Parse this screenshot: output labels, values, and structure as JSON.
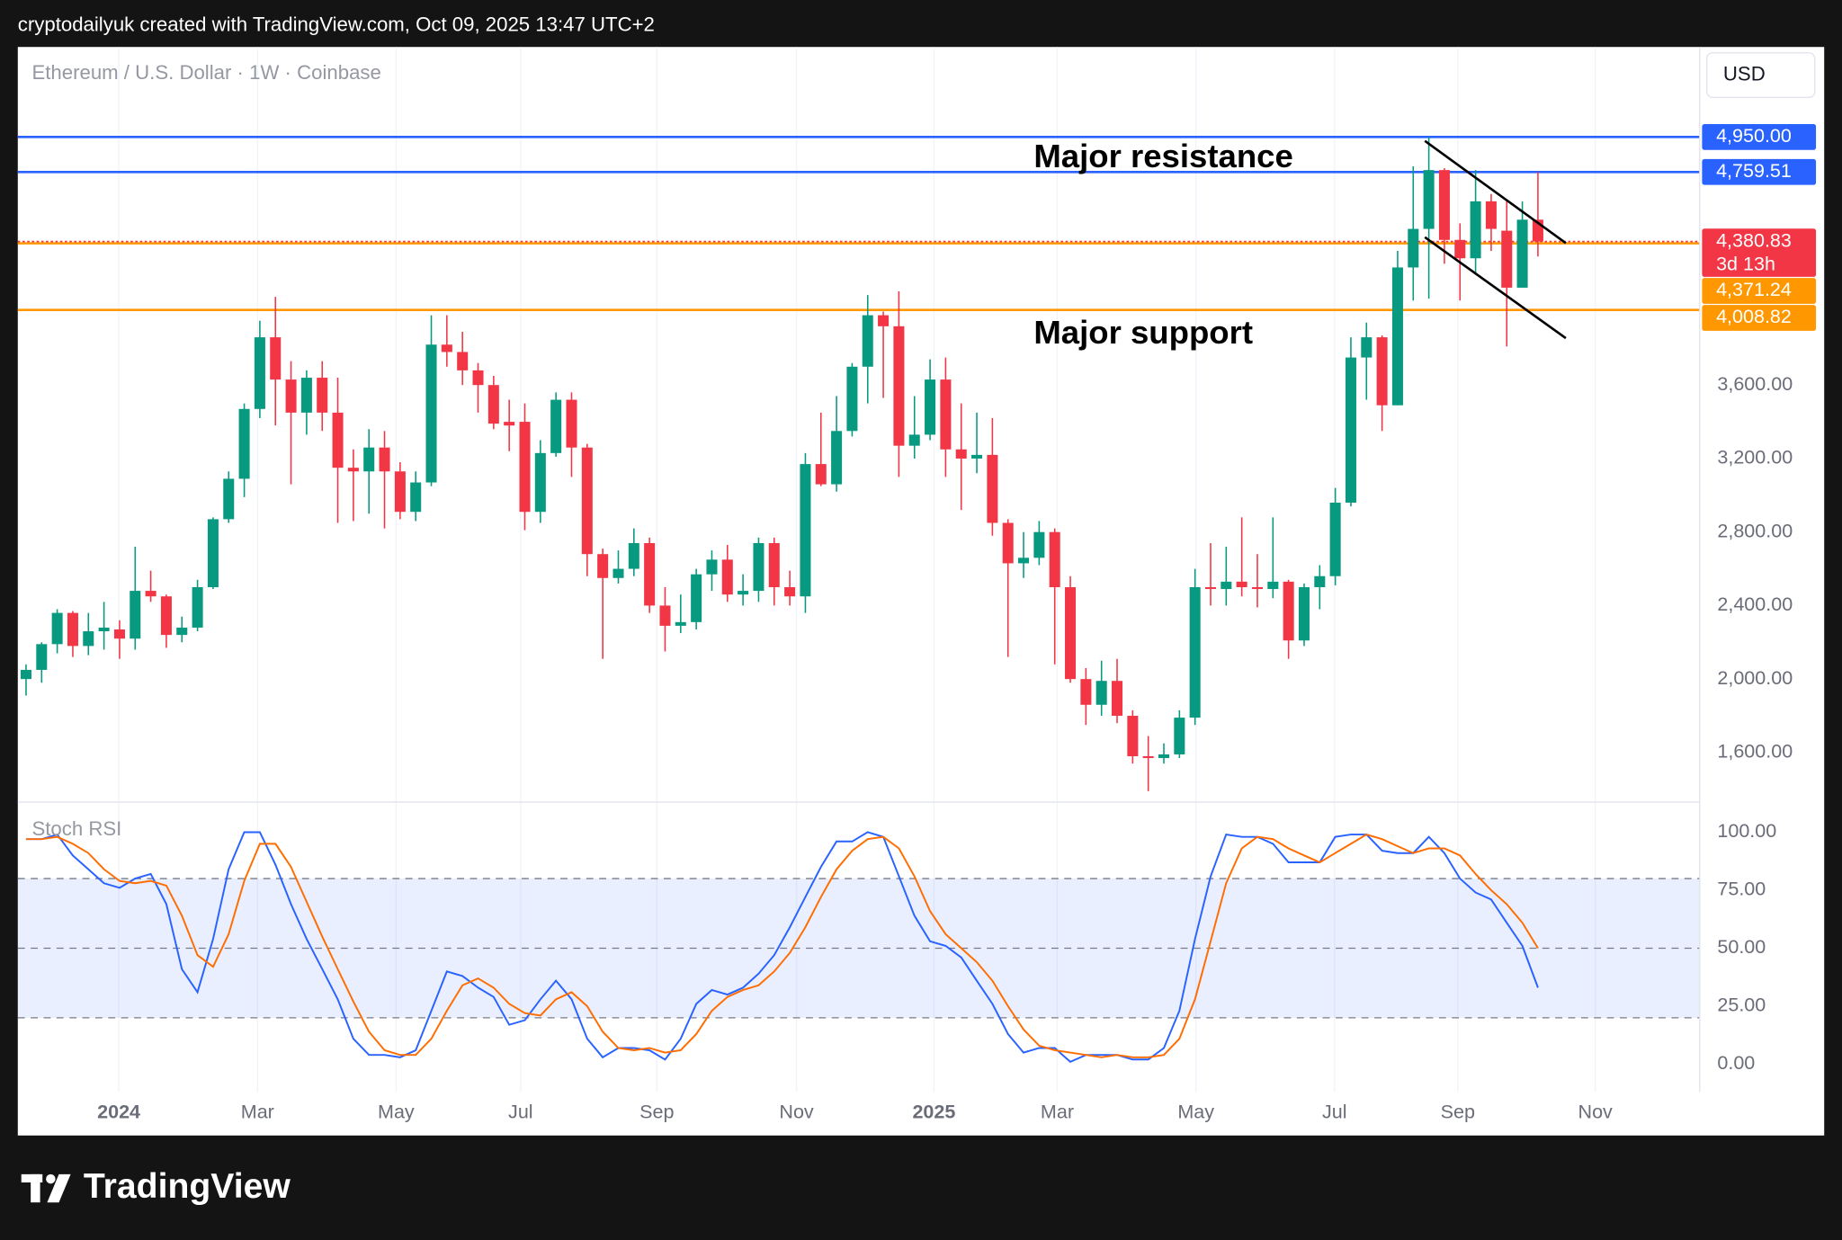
{
  "header": {
    "text": "cryptodailyuk created with TradingView.com, Oct 09, 2025 13:47 UTC+2"
  },
  "footer": {
    "logo": "TradingView"
  },
  "chart_data": [
    {
      "type": "candlestick",
      "title": "Ethereum / U.S. Dollar · 1W · Coinbase",
      "currency": "USD",
      "open": [
        2000,
        2050,
        2190,
        2360,
        2180,
        2260,
        2270,
        2220,
        2480,
        2450,
        2240,
        2280,
        2500,
        2870,
        3090,
        3470,
        3860,
        3630,
        3450,
        3640,
        3450,
        3150,
        3130,
        3260,
        3130,
        2910,
        3070,
        3820,
        3780,
        3680,
        3600,
        3400,
        3400,
        2910,
        3230,
        3520,
        3260,
        2680,
        2550,
        2600,
        2740,
        2400,
        2290,
        2310,
        2570,
        2650,
        2460,
        2480,
        2740,
        2500,
        2450,
        3170,
        3060,
        3350,
        3700,
        3980,
        3920,
        3270,
        3330,
        3630,
        3250,
        3200,
        3220,
        2850,
        2630,
        2660,
        2800,
        2500,
        2000,
        1860,
        1990,
        1800,
        1580,
        1570,
        1590,
        1790,
        2500,
        2490,
        2530,
        2500,
        2490,
        2530,
        2210,
        2500,
        2560,
        2960,
        3750,
        3860,
        3490,
        4240,
        4450,
        4770,
        4390,
        4290,
        4600,
        4440,
        4130,
        4500
      ],
      "high": [
        2080,
        2200,
        2380,
        2370,
        2360,
        2420,
        2320,
        2720,
        2590,
        2460,
        2340,
        2540,
        2880,
        3130,
        3500,
        3950,
        4080,
        3730,
        3680,
        3730,
        3640,
        3250,
        3360,
        3350,
        3180,
        3130,
        3980,
        3980,
        3890,
        3720,
        3650,
        3520,
        3500,
        3300,
        3560,
        3560,
        3280,
        2710,
        2700,
        2820,
        2770,
        2500,
        2460,
        2600,
        2700,
        2730,
        2570,
        2770,
        2770,
        2590,
        3230,
        3450,
        3540,
        3720,
        4090,
        4000,
        4110,
        3540,
        3740,
        3750,
        3500,
        3450,
        3420,
        2870,
        2800,
        2860,
        2820,
        2560,
        2060,
        2100,
        2110,
        1830,
        1690,
        1650,
        1830,
        2600,
        2740,
        2720,
        2880,
        2680,
        2880,
        2540,
        2520,
        2620,
        3040,
        3860,
        3940,
        3870,
        4330,
        4790,
        4950,
        4780,
        4480,
        4770,
        4640,
        4600,
        4600,
        4760
      ],
      "low": [
        1910,
        1980,
        2140,
        2120,
        2130,
        2160,
        2110,
        2160,
        2420,
        2170,
        2200,
        2260,
        2490,
        2850,
        2990,
        3420,
        3380,
        3060,
        3330,
        3350,
        2850,
        2860,
        2900,
        2820,
        2870,
        2860,
        3050,
        3700,
        3600,
        3450,
        3360,
        3240,
        2810,
        2850,
        3210,
        3100,
        2560,
        2110,
        2520,
        2560,
        2360,
        2150,
        2250,
        2270,
        2480,
        2420,
        2400,
        2420,
        2400,
        2400,
        2360,
        3050,
        3020,
        3320,
        3500,
        3530,
        3100,
        3200,
        3300,
        3100,
        2920,
        3120,
        2780,
        2120,
        2550,
        2620,
        2080,
        1980,
        1750,
        1800,
        1760,
        1540,
        1390,
        1540,
        1570,
        1750,
        2400,
        2400,
        2450,
        2390,
        2440,
        2110,
        2180,
        2380,
        2510,
        2940,
        3520,
        3350,
        3490,
        4060,
        4070,
        4260,
        4060,
        4210,
        4330,
        3810,
        4130,
        4300
      ],
      "close": [
        2050,
        2190,
        2360,
        2180,
        2260,
        2280,
        2220,
        2480,
        2450,
        2240,
        2280,
        2500,
        2870,
        3090,
        3470,
        3860,
        3630,
        3450,
        3640,
        3450,
        3150,
        3130,
        3260,
        3130,
        2910,
        3070,
        3820,
        3780,
        3680,
        3600,
        3390,
        3380,
        2910,
        3230,
        3520,
        3260,
        2680,
        2550,
        2600,
        2740,
        2400,
        2290,
        2310,
        2570,
        2650,
        2460,
        2480,
        2740,
        2500,
        2450,
        3170,
        3060,
        3350,
        3700,
        3980,
        3920,
        3270,
        3330,
        3630,
        3250,
        3200,
        3220,
        2850,
        2630,
        2660,
        2800,
        2500,
        2000,
        1860,
        1990,
        1800,
        1580,
        1570,
        1590,
        1790,
        2500,
        2490,
        2530,
        2500,
        2490,
        2530,
        2210,
        2500,
        2560,
        2960,
        3750,
        3860,
        3490,
        4240,
        4450,
        4770,
        4390,
        4290,
        4600,
        4450,
        4130,
        4500,
        4380.83
      ],
      "up_color": "#089981",
      "down_color": "#f23645",
      "xlim": [
        -0.53,
        107.38
      ],
      "xticks": [
        {
          "value": 5.95,
          "label": "2024"
        },
        {
          "value": 14.85,
          "label": "Mar"
        },
        {
          "value": 23.74,
          "label": "May"
        },
        {
          "value": 31.73,
          "label": "Jul"
        },
        {
          "value": 40.47,
          "label": "Sep"
        },
        {
          "value": 49.43,
          "label": "Nov"
        },
        {
          "value": 58.25,
          "label": "2025"
        },
        {
          "value": 66.16,
          "label": "Mar"
        },
        {
          "value": 75.06,
          "label": "May"
        },
        {
          "value": 83.95,
          "label": "Jul"
        },
        {
          "value": 91.86,
          "label": "Sep"
        },
        {
          "value": 100.68,
          "label": "Nov"
        }
      ],
      "ylim": [
        1350,
        5440
      ],
      "yticks": [
        {
          "value": 1600,
          "label": "1,600.00"
        },
        {
          "value": 2000,
          "label": "2,000.00"
        },
        {
          "value": 2400,
          "label": "2,400.00"
        },
        {
          "value": 2800,
          "label": "2,800.00"
        },
        {
          "value": 3200,
          "label": "3,200.00"
        },
        {
          "value": 3600,
          "label": "3,600.00"
        }
      ],
      "grid": true,
      "levels": [
        {
          "value": 4950,
          "label": "4,950.00",
          "color": "#2962ff"
        },
        {
          "value": 4759.51,
          "label": "4,759.51",
          "color": "#2962ff"
        },
        {
          "value": 4380.83,
          "label": "4,380.83",
          "countdown": "3d 13h",
          "color": "#f23645",
          "style": "dotted"
        },
        {
          "value": 4371.24,
          "label": "4,371.24",
          "color": "#ff9800"
        },
        {
          "value": 4008.82,
          "label": "4,008.82",
          "color": "#ff9800"
        }
      ],
      "annotations": [
        "Major resistance",
        "Major support"
      ]
    },
    {
      "type": "line",
      "title": "Stoch RSI",
      "series": [
        {
          "color": "#2962ff",
          "values": [
            97,
            97,
            99,
            90,
            84,
            78,
            76,
            80,
            82,
            69,
            41,
            31,
            54,
            84,
            100,
            100,
            86,
            69,
            54,
            41,
            28,
            11,
            4,
            4,
            3,
            6,
            23,
            40,
            38,
            33,
            29,
            17,
            19,
            28,
            36,
            28,
            11,
            3,
            7,
            7,
            6,
            2,
            11,
            26,
            32,
            30,
            33,
            39,
            47,
            59,
            72,
            85,
            96,
            96,
            100,
            98,
            81,
            64,
            53,
            51,
            46,
            36,
            26,
            13,
            5,
            7,
            7,
            1,
            4,
            4,
            4,
            2,
            2,
            7,
            23,
            54,
            81,
            99,
            98,
            98,
            95,
            87,
            87,
            87,
            98,
            99,
            99,
            92,
            91,
            91,
            98,
            91,
            80,
            74,
            71,
            61,
            51,
            33
          ]
        },
        {
          "color": "#ff6d00",
          "values": [
            97,
            97,
            98,
            95,
            91,
            84,
            79,
            78,
            79,
            77,
            64,
            47,
            42,
            56,
            79,
            95,
            95,
            85,
            70,
            55,
            41,
            27,
            14,
            6,
            4,
            4,
            11,
            23,
            34,
            37,
            33,
            26,
            22,
            21,
            28,
            31,
            25,
            14,
            7,
            6,
            7,
            5,
            6,
            13,
            23,
            29,
            32,
            34,
            40,
            48,
            59,
            72,
            84,
            92,
            97,
            98,
            93,
            81,
            66,
            56,
            50,
            44,
            36,
            25,
            15,
            8,
            6,
            5,
            4,
            3,
            4,
            3,
            3,
            4,
            11,
            28,
            53,
            78,
            93,
            98,
            97,
            93,
            90,
            87,
            91,
            95,
            99,
            97,
            94,
            91,
            93,
            93,
            90,
            82,
            75,
            69,
            61,
            50
          ]
        }
      ],
      "ylim": [
        -12,
        112
      ],
      "yticks": [
        {
          "value": 0,
          "label": "0.00"
        },
        {
          "value": 25,
          "label": "25.00"
        },
        {
          "value": 50,
          "label": "50.00"
        },
        {
          "value": 75,
          "label": "75.00"
        },
        {
          "value": 100,
          "label": "100.00"
        }
      ],
      "band": [
        20,
        80
      ],
      "band_color": "#2962ff",
      "reference_lines": [
        80,
        50,
        20
      ]
    }
  ]
}
